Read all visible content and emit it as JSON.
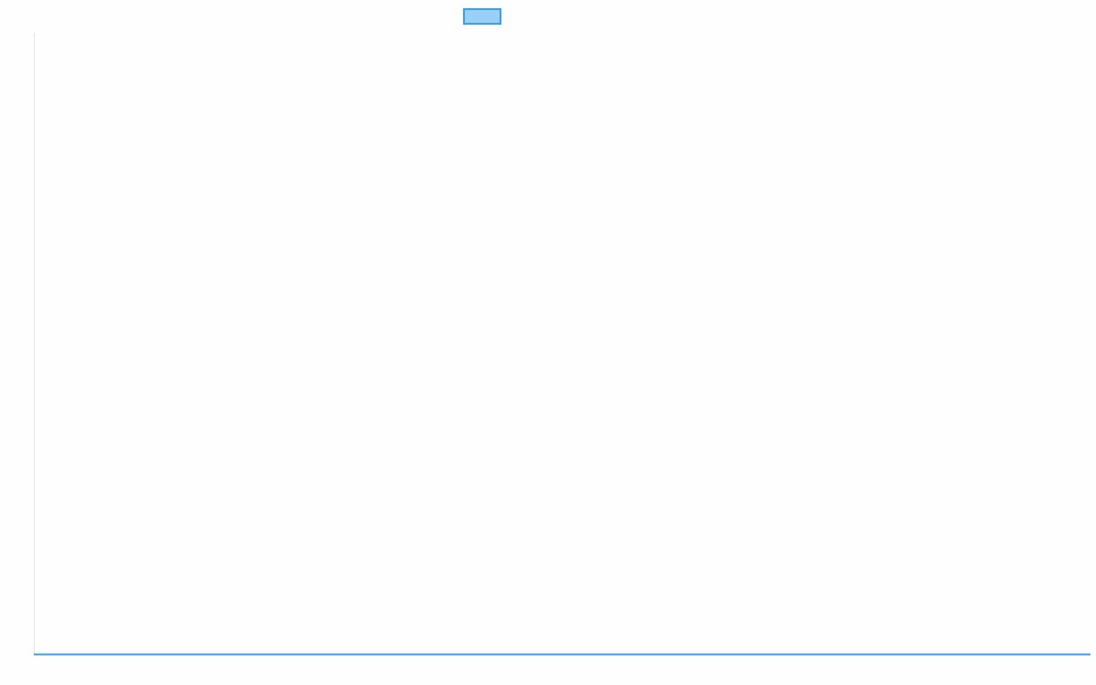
{
  "chart_data": {
    "type": "line",
    "title": "",
    "xlabel": "",
    "ylabel": "",
    "categories": [],
    "series": [
      {
        "values": [],
        "color": "#36a2eb",
        "fill": "#9ad0f5"
      }
    ],
    "grid": false,
    "legend": "top-center"
  }
}
